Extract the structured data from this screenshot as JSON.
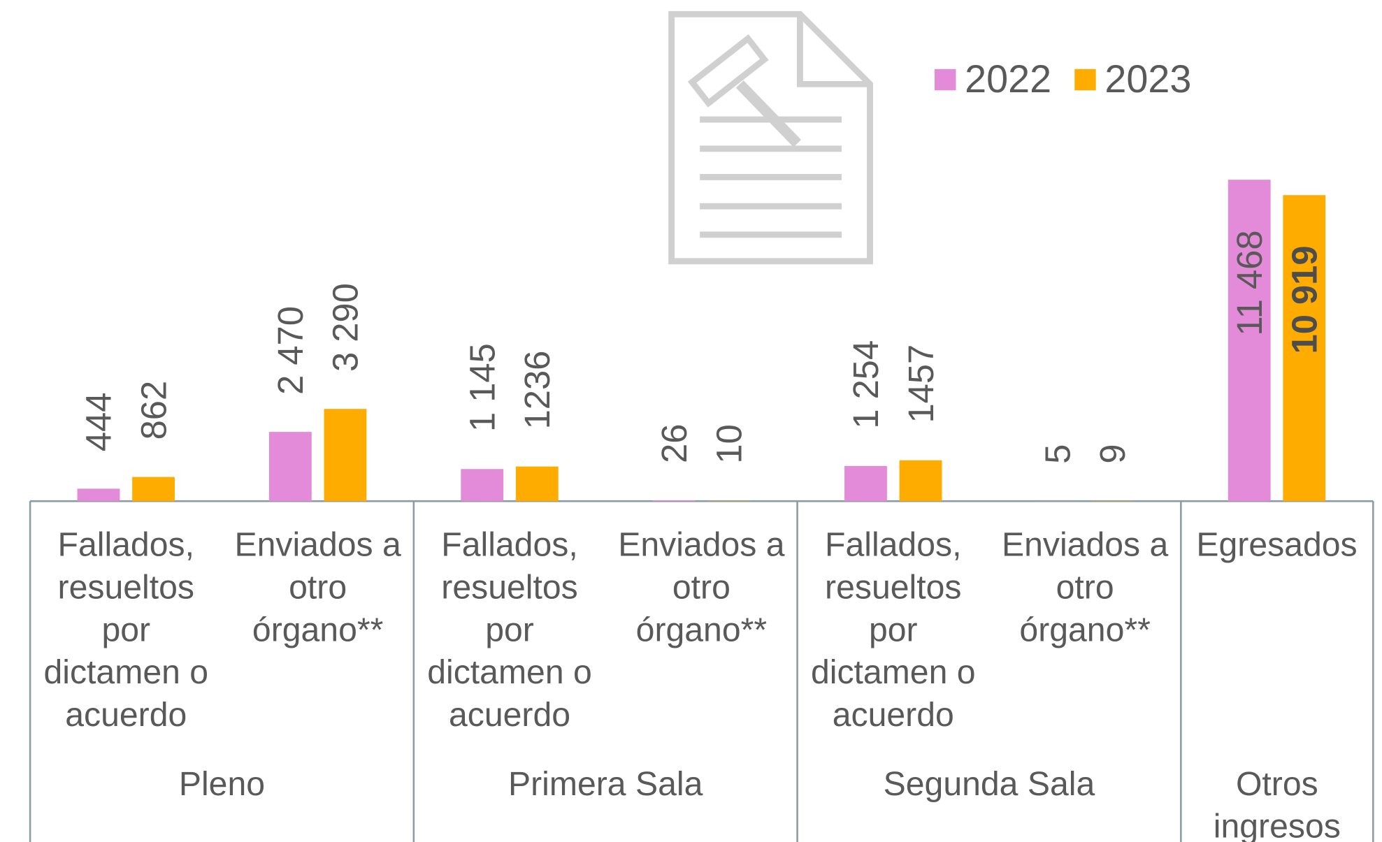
{
  "chart_data": {
    "type": "bar",
    "categories": [
      "Fallados, resueltos por dictamen o acuerdo",
      "Enviados a otro órgano**",
      "Fallados, resueltos por dictamen o acuerdo",
      "Enviados a otro órgano**",
      "Fallados, resueltos por dictamen o acuerdo",
      "Enviados a otro órgano**",
      "Egresados"
    ],
    "groups": [
      "Pleno",
      "Primera Sala",
      "Segunda Sala",
      "Otros ingresos"
    ],
    "series": [
      {
        "name": "2022",
        "color": "#e38ad9",
        "values": [
          444,
          2470,
          1145,
          26,
          1254,
          5,
          11468
        ],
        "value_labels": [
          "444",
          "2 470",
          "1 145",
          "26",
          "1 254",
          "5",
          "11 468"
        ]
      },
      {
        "name": "2023",
        "color": "#ffac00",
        "values": [
          862,
          3290,
          1236,
          10,
          1457,
          9,
          10919
        ],
        "value_labels": [
          "862",
          "3 290",
          "1236",
          "10",
          "1457",
          "9",
          "10 919"
        ]
      }
    ],
    "legend": "top-right"
  }
}
